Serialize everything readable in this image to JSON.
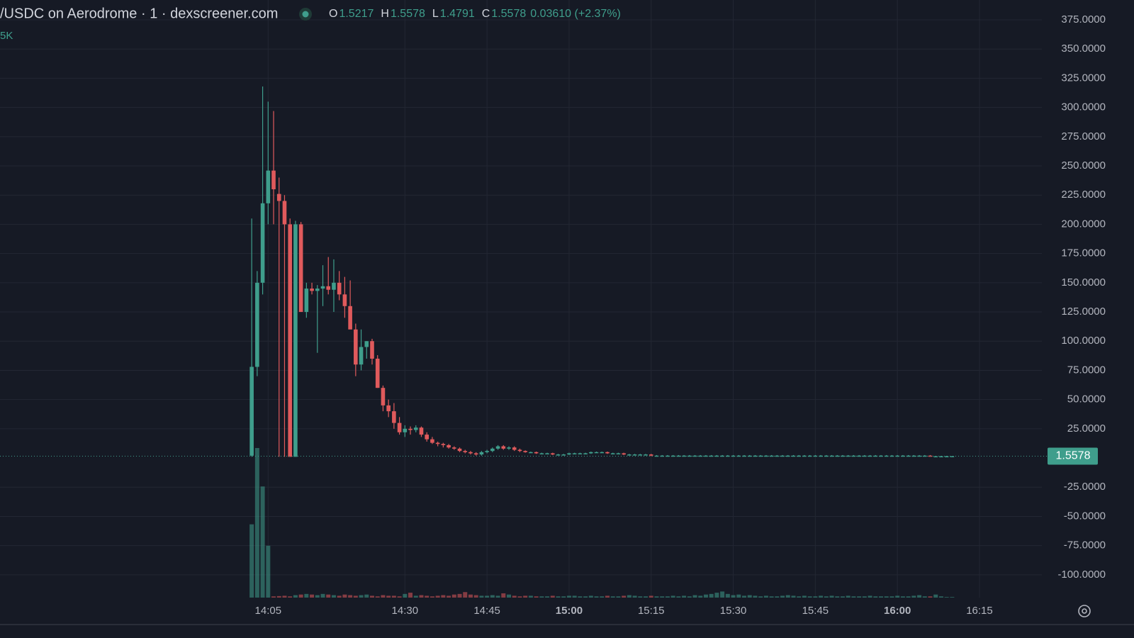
{
  "chart_data": {
    "type": "candlestick",
    "title": "/USDC on Aerodrome · 1 · dexscreener.com",
    "ohlc": [
      {
        "label": "O",
        "value": "1.5217"
      },
      {
        "label": "H",
        "value": "1.5578"
      },
      {
        "label": "L",
        "value": "1.4791"
      },
      {
        "label": "C",
        "value": "1.5578"
      }
    ],
    "change": "0.03610 (+2.37%)",
    "volume_label": "5K",
    "up_color": "#3f9e8c",
    "down_color": "#e05a5c",
    "grid": true,
    "x": [
      842,
      843,
      844,
      845,
      846,
      847,
      848,
      849,
      850,
      851,
      852,
      853,
      854,
      855,
      856,
      857,
      858,
      859,
      860,
      861,
      862,
      863,
      864,
      865,
      866,
      867,
      868,
      869,
      870,
      871,
      872,
      873,
      874,
      875,
      876,
      877,
      878,
      879,
      880,
      881,
      882,
      883,
      884,
      885,
      886,
      887,
      888,
      889,
      890,
      891,
      892,
      893,
      894,
      895,
      896,
      897,
      898,
      899,
      900,
      901,
      902,
      903,
      904,
      905,
      906,
      907,
      908,
      909,
      910,
      911,
      912,
      913,
      914,
      915,
      916,
      917,
      918,
      919,
      920,
      921,
      922,
      923,
      924,
      925,
      926,
      927,
      928,
      929,
      930,
      931,
      932,
      933,
      934,
      935,
      936,
      937,
      938,
      939,
      940,
      941,
      942,
      943,
      944,
      945,
      946,
      947,
      948,
      949,
      950,
      951,
      952,
      953,
      954,
      955,
      956,
      957,
      958,
      959,
      960,
      961,
      962,
      963,
      964,
      965,
      966,
      967,
      968,
      969,
      970
    ],
    "open": [
      2,
      78,
      150,
      218,
      246,
      226,
      220,
      200,
      1,
      200,
      125,
      145,
      143,
      145,
      147,
      144,
      150,
      140,
      130,
      110,
      80,
      95,
      100,
      85,
      60,
      45,
      40,
      30,
      22,
      25,
      24,
      26,
      20,
      16,
      13,
      12,
      11,
      9,
      8,
      6,
      5,
      4,
      3,
      5,
      6,
      8,
      10,
      8,
      9,
      7,
      6,
      5,
      5,
      4,
      4,
      4,
      3,
      3,
      3,
      4,
      4,
      4,
      4,
      5,
      5,
      5,
      4,
      4,
      4,
      3,
      3,
      3,
      3,
      3,
      2,
      2,
      2,
      2,
      2,
      2,
      2,
      2,
      2,
      2,
      2,
      2,
      2,
      2,
      2,
      2,
      2,
      2,
      2,
      2,
      2,
      2,
      2,
      2,
      2,
      2,
      2,
      2,
      2,
      2,
      2,
      2,
      2,
      2,
      2,
      2,
      2,
      2,
      2,
      2,
      2,
      2,
      2,
      2,
      2,
      2,
      2,
      2,
      2,
      2,
      2,
      1.5,
      1.5,
      1.5,
      1.5217
    ],
    "high": [
      205,
      160,
      318,
      305,
      297,
      240,
      225,
      205,
      203,
      202,
      150,
      150,
      148,
      165,
      172,
      170,
      160,
      155,
      152,
      115,
      110,
      100,
      102,
      88,
      62,
      50,
      47,
      35,
      28,
      27,
      28,
      27,
      22,
      18,
      14,
      13,
      12,
      10,
      9,
      7,
      6,
      5,
      6,
      7,
      9,
      11,
      11,
      10,
      10,
      8,
      6.5,
      5.5,
      5.5,
      4.5,
      4.5,
      4.5,
      3.5,
      3.5,
      4.5,
      4.5,
      4.5,
      4.5,
      5.5,
      5.5,
      5.5,
      5.5,
      4.5,
      4.5,
      4.5,
      3.5,
      3.5,
      3.5,
      3.5,
      3.5,
      2.5,
      2.5,
      2.5,
      2.5,
      2.5,
      2.5,
      2.5,
      2.5,
      2.5,
      2.5,
      2.5,
      2.5,
      2.5,
      2.5,
      2.5,
      2.5,
      2.5,
      2.5,
      2.5,
      2.5,
      2.5,
      2.5,
      2.5,
      2.5,
      2.5,
      2.5,
      2.5,
      2.5,
      2.5,
      2.5,
      2.5,
      2.5,
      2.5,
      2.5,
      2.5,
      2.5,
      2.5,
      2.5,
      2.5,
      2.5,
      2.5,
      2.5,
      2.5,
      2.5,
      2.5,
      2.5,
      2.5,
      2.5,
      2.5,
      2.5,
      2.5,
      1.8,
      1.8,
      1.8,
      1.5578
    ],
    "low": [
      1,
      70,
      140,
      200,
      200,
      1,
      1,
      1,
      1,
      125,
      120,
      140,
      90,
      130,
      140,
      125,
      135,
      120,
      115,
      70,
      75,
      85,
      80,
      60,
      40,
      35,
      25,
      20,
      18,
      20,
      22,
      18,
      14,
      12,
      10,
      9,
      8,
      7,
      5,
      4,
      3,
      2,
      2,
      4,
      5,
      7,
      7,
      7,
      6,
      5,
      4.5,
      4.5,
      3.5,
      3.5,
      3.5,
      2.5,
      2.5,
      2.5,
      2.5,
      3.5,
      3.5,
      3.5,
      3.5,
      4.5,
      4.5,
      3.5,
      3.5,
      3.5,
      2.5,
      2.5,
      2.5,
      2.5,
      2.5,
      1.5,
      1.5,
      1.5,
      1.5,
      1.5,
      1.5,
      1.5,
      1.5,
      1.5,
      1.5,
      1.5,
      1.5,
      1.5,
      1.5,
      1.5,
      1.5,
      1.5,
      1.5,
      1.5,
      1.5,
      1.5,
      1.5,
      1.5,
      1.5,
      1.5,
      1.5,
      1.5,
      1.5,
      1.5,
      1.5,
      1.5,
      1.5,
      1.5,
      1.5,
      1.5,
      1.5,
      1.5,
      1.5,
      1.5,
      1.5,
      1.5,
      1.5,
      1.5,
      1.5,
      1.5,
      1.5,
      1.5,
      1.5,
      1.5,
      1.5,
      1.5,
      1.2,
      1.2,
      1.2,
      1.2,
      1.4791
    ],
    "close": [
      78,
      150,
      218,
      246,
      230,
      220,
      200,
      1,
      200,
      125,
      145,
      143,
      145,
      147,
      144,
      150,
      140,
      130,
      110,
      80,
      95,
      100,
      85,
      60,
      45,
      40,
      30,
      22,
      25,
      24,
      26,
      20,
      16,
      13,
      12,
      11,
      9,
      8,
      6,
      5,
      4,
      3,
      5,
      6,
      8,
      10,
      8,
      9,
      7,
      6,
      5,
      5,
      4,
      4,
      4,
      3,
      3,
      3,
      4,
      4,
      4,
      4,
      5,
      5,
      5,
      4,
      4,
      4,
      3,
      3,
      3,
      3,
      3,
      2,
      2,
      2,
      2,
      2,
      2,
      2,
      2,
      2,
      2,
      2,
      2,
      2,
      2,
      2,
      2,
      2,
      2,
      2,
      2,
      2,
      2,
      2,
      2,
      2,
      2,
      2,
      2,
      2,
      2,
      2,
      2,
      2,
      2,
      2,
      2,
      2,
      2,
      2,
      2,
      2,
      2,
      2,
      2,
      2,
      2,
      2,
      2,
      2,
      2,
      2,
      1.5,
      1.5,
      1.5,
      1.5217,
      1.5578
    ],
    "volume": [
      120000,
      245000,
      182000,
      85000,
      2000,
      2500,
      3000,
      2000,
      4000,
      5000,
      6000,
      5000,
      4000,
      6000,
      5000,
      4000,
      3000,
      5000,
      4000,
      3000,
      4000,
      5000,
      3000,
      2000,
      4000,
      3000,
      3000,
      2000,
      6000,
      8000,
      3000,
      4000,
      3000,
      2000,
      3000,
      4000,
      3000,
      5000,
      6000,
      9000,
      5000,
      4000,
      3000,
      3000,
      4000,
      3000,
      7000,
      5000,
      3000,
      2000,
      3000,
      3000,
      2000,
      2000,
      2000,
      3000,
      2000,
      2000,
      3000,
      3000,
      2000,
      2000,
      3000,
      2000,
      2000,
      3000,
      2000,
      2000,
      3000,
      4000,
      3000,
      2000,
      2000,
      3000,
      2000,
      2000,
      2000,
      3000,
      2000,
      3000,
      2000,
      4000,
      3000,
      5000,
      6000,
      8000,
      10000,
      6000,
      4000,
      5000,
      3000,
      4000,
      3000,
      2000,
      3000,
      2000,
      2000,
      3000,
      4000,
      3000,
      2000,
      3000,
      2000,
      2000,
      3000,
      2000,
      3000,
      2000,
      2000,
      3000,
      2000,
      2000,
      2000,
      3000,
      2000,
      2000,
      2000,
      2000,
      3000,
      2000,
      2000,
      3000,
      4000,
      2000,
      2000,
      5000,
      2000,
      1000,
      1000
    ],
    "last_price": {
      "value": 1.5578,
      "label": "1.5578"
    },
    "xlim": [
      796,
      986.4
    ],
    "ylim": [
      -119.5,
      392
    ],
    "xticks": [
      {
        "value": 845,
        "label": "14:05"
      },
      {
        "value": 870,
        "label": "14:30"
      },
      {
        "value": 885,
        "label": "14:45"
      },
      {
        "value": 900,
        "label": "15:00"
      },
      {
        "value": 915,
        "label": "15:15"
      },
      {
        "value": 930,
        "label": "15:30"
      },
      {
        "value": 945,
        "label": "15:45"
      },
      {
        "value": 960,
        "label": "16:00"
      },
      {
        "value": 975,
        "label": "16:15"
      }
    ],
    "yticks": [
      {
        "value": 375,
        "label": "375.0000"
      },
      {
        "value": 350,
        "label": "350.0000"
      },
      {
        "value": 325,
        "label": "325.0000"
      },
      {
        "value": 300,
        "label": "300.0000"
      },
      {
        "value": 275,
        "label": "275.0000"
      },
      {
        "value": 250,
        "label": "250.0000"
      },
      {
        "value": 225,
        "label": "225.0000"
      },
      {
        "value": 200,
        "label": "200.0000"
      },
      {
        "value": 175,
        "label": "175.0000"
      },
      {
        "value": 150,
        "label": "150.0000"
      },
      {
        "value": 125,
        "label": "125.0000"
      },
      {
        "value": 100,
        "label": "100.0000"
      },
      {
        "value": 75,
        "label": "75.0000"
      },
      {
        "value": 50,
        "label": "50.0000"
      },
      {
        "value": 25,
        "label": "25.0000"
      },
      {
        "value": -25,
        "label": "-25.0000"
      },
      {
        "value": -50,
        "label": "-50.0000"
      },
      {
        "value": -75,
        "label": "-75.0000"
      },
      {
        "value": -100,
        "label": "-100.0000"
      }
    ]
  }
}
